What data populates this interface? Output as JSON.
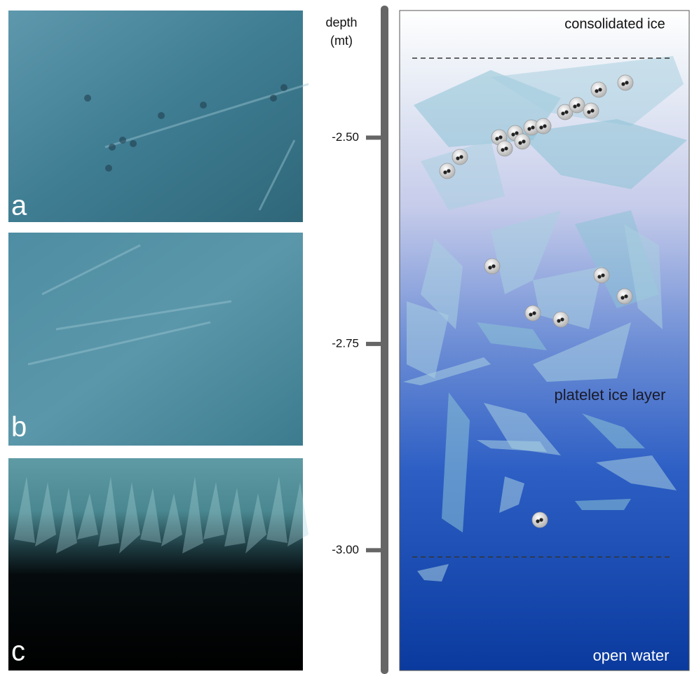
{
  "panels": [
    {
      "label": "a"
    },
    {
      "label": "b"
    },
    {
      "label": "c"
    }
  ],
  "depth_axis": {
    "title_lines": [
      "depth",
      "(mt)"
    ],
    "range": [
      -2.34,
      -3.15
    ],
    "ticks": [
      {
        "value": -2.5,
        "label": "-2.50"
      },
      {
        "value": -2.75,
        "label": "-2.75"
      },
      {
        "value": -3.0,
        "label": "-3.00"
      }
    ]
  },
  "schematic": {
    "top_label": "consolidated ice",
    "middle_label": "platelet ice layer",
    "bottom_label": "open water"
  }
}
